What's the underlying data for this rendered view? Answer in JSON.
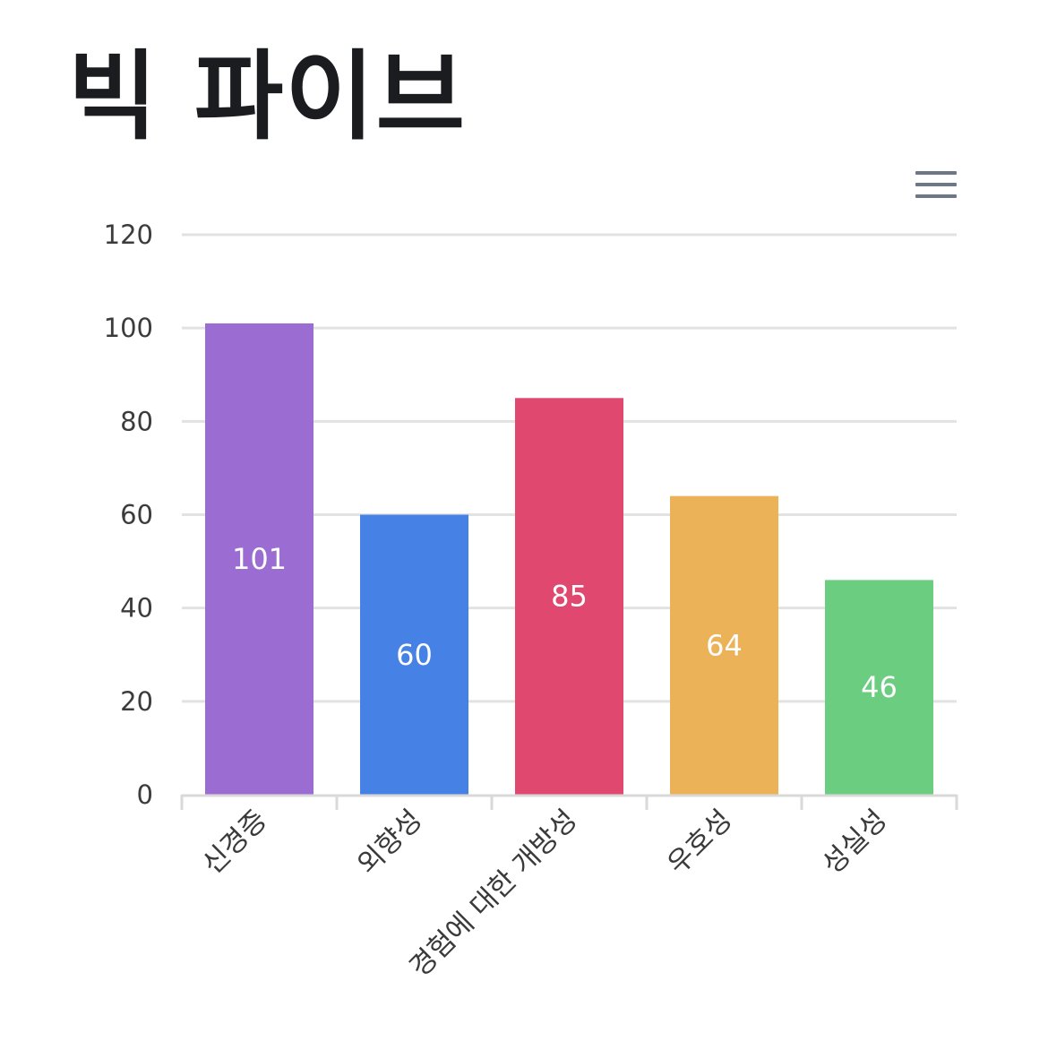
{
  "title": "빅 파이브",
  "menu": {
    "icon": "hamburger-menu-icon"
  },
  "chart_data": {
    "type": "bar",
    "title": "빅 파이브",
    "xlabel": "",
    "ylabel": "",
    "categories": [
      "신경증",
      "외향성",
      "경험에 대한 개방성",
      "우호성",
      "성실성"
    ],
    "values": [
      101,
      60,
      85,
      64,
      46
    ],
    "colors": [
      "#9b6dd3",
      "#4681e5",
      "#e0486f",
      "#ebb257",
      "#6bcd7f"
    ],
    "ylim": [
      0,
      120
    ],
    "yticks": [
      0,
      20,
      40,
      60,
      80,
      100,
      120
    ],
    "grid": true,
    "legend": "none",
    "data_labels": true
  }
}
